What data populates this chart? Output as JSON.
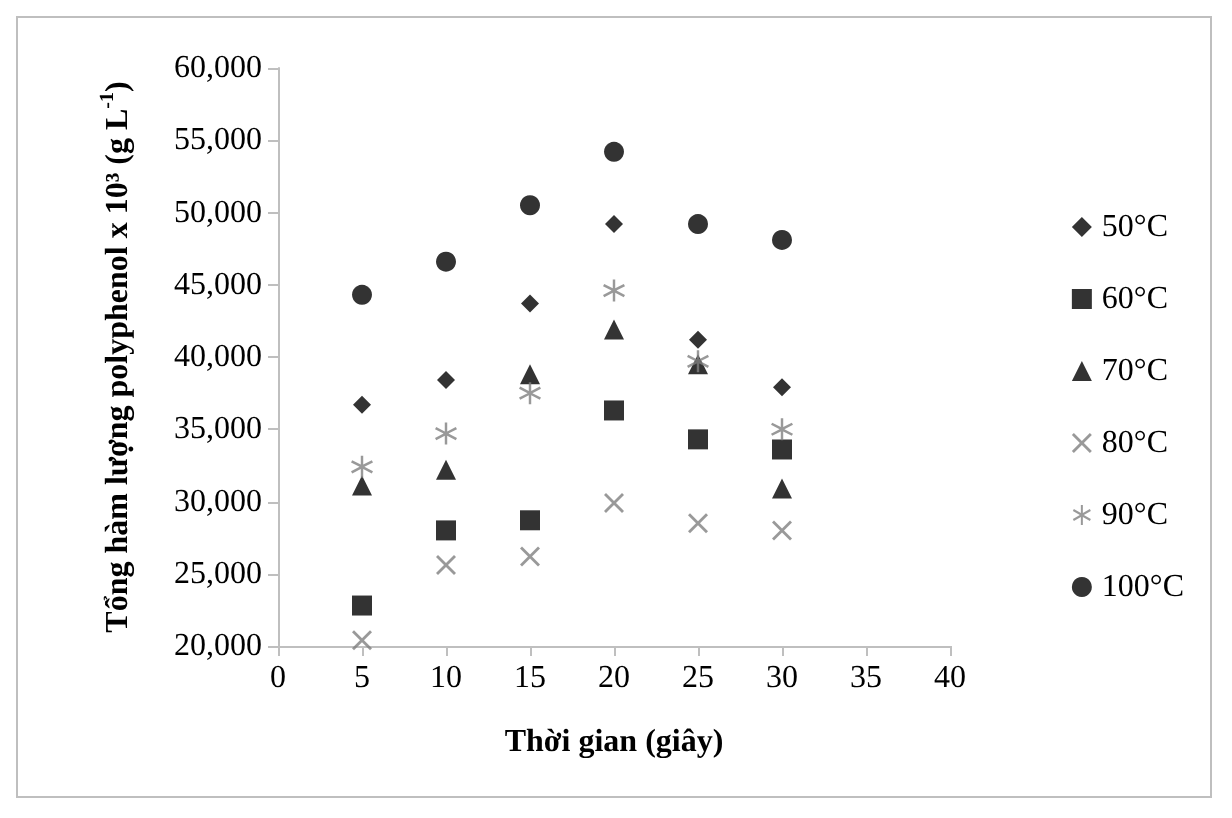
{
  "chart_data": {
    "type": "scatter",
    "xlabel": "Thời gian (giây)",
    "ylabel": "Tổng hàm lượng polyphenol x 10³ (g L$^{-1}$)",
    "x": [
      5,
      10,
      15,
      20,
      25,
      30
    ],
    "series": [
      {
        "name": "50°C",
        "color": "#000000",
        "marker": "diamond",
        "values": [
          36700,
          38400,
          43700,
          49200,
          41200,
          37900
        ]
      },
      {
        "name": "60°C",
        "color": "#000000",
        "marker": "square",
        "values": [
          22800,
          28000,
          28700,
          36300,
          34300,
          33600
        ]
      },
      {
        "name": "70°C",
        "color": "#000000",
        "marker": "triangle",
        "values": [
          31100,
          32200,
          38800,
          41900,
          39500,
          30900
        ]
      },
      {
        "name": "80°C",
        "color": "#7f7f7f",
        "marker": "cross",
        "values": [
          20400,
          25600,
          26200,
          29900,
          28500,
          28000
        ]
      },
      {
        "name": "90°C",
        "color": "#7f7f7f",
        "marker": "star",
        "values": [
          32400,
          34700,
          37500,
          44600,
          39700,
          35000
        ]
      },
      {
        "name": "100°C",
        "color": "#000000",
        "marker": "circle",
        "values": [
          44300,
          46600,
          50500,
          54200,
          49200,
          48100
        ]
      }
    ],
    "xlim": [
      0,
      40
    ],
    "xticks": [
      0,
      5,
      10,
      15,
      20,
      25,
      30,
      35,
      40
    ],
    "ylim": [
      20000,
      60000
    ],
    "yticks": [
      {
        "value": 20000,
        "label": "20,000"
      },
      {
        "value": 25000,
        "label": "25,000"
      },
      {
        "value": 30000,
        "label": "30,000"
      },
      {
        "value": 35000,
        "label": "35,000"
      },
      {
        "value": 40000,
        "label": "40,000"
      },
      {
        "value": 45000,
        "label": "45,000"
      },
      {
        "value": 50000,
        "label": "50,000"
      },
      {
        "value": 55000,
        "label": "55,000"
      },
      {
        "value": 60000,
        "label": "60,000"
      }
    ],
    "grid": false,
    "legend": "right"
  }
}
